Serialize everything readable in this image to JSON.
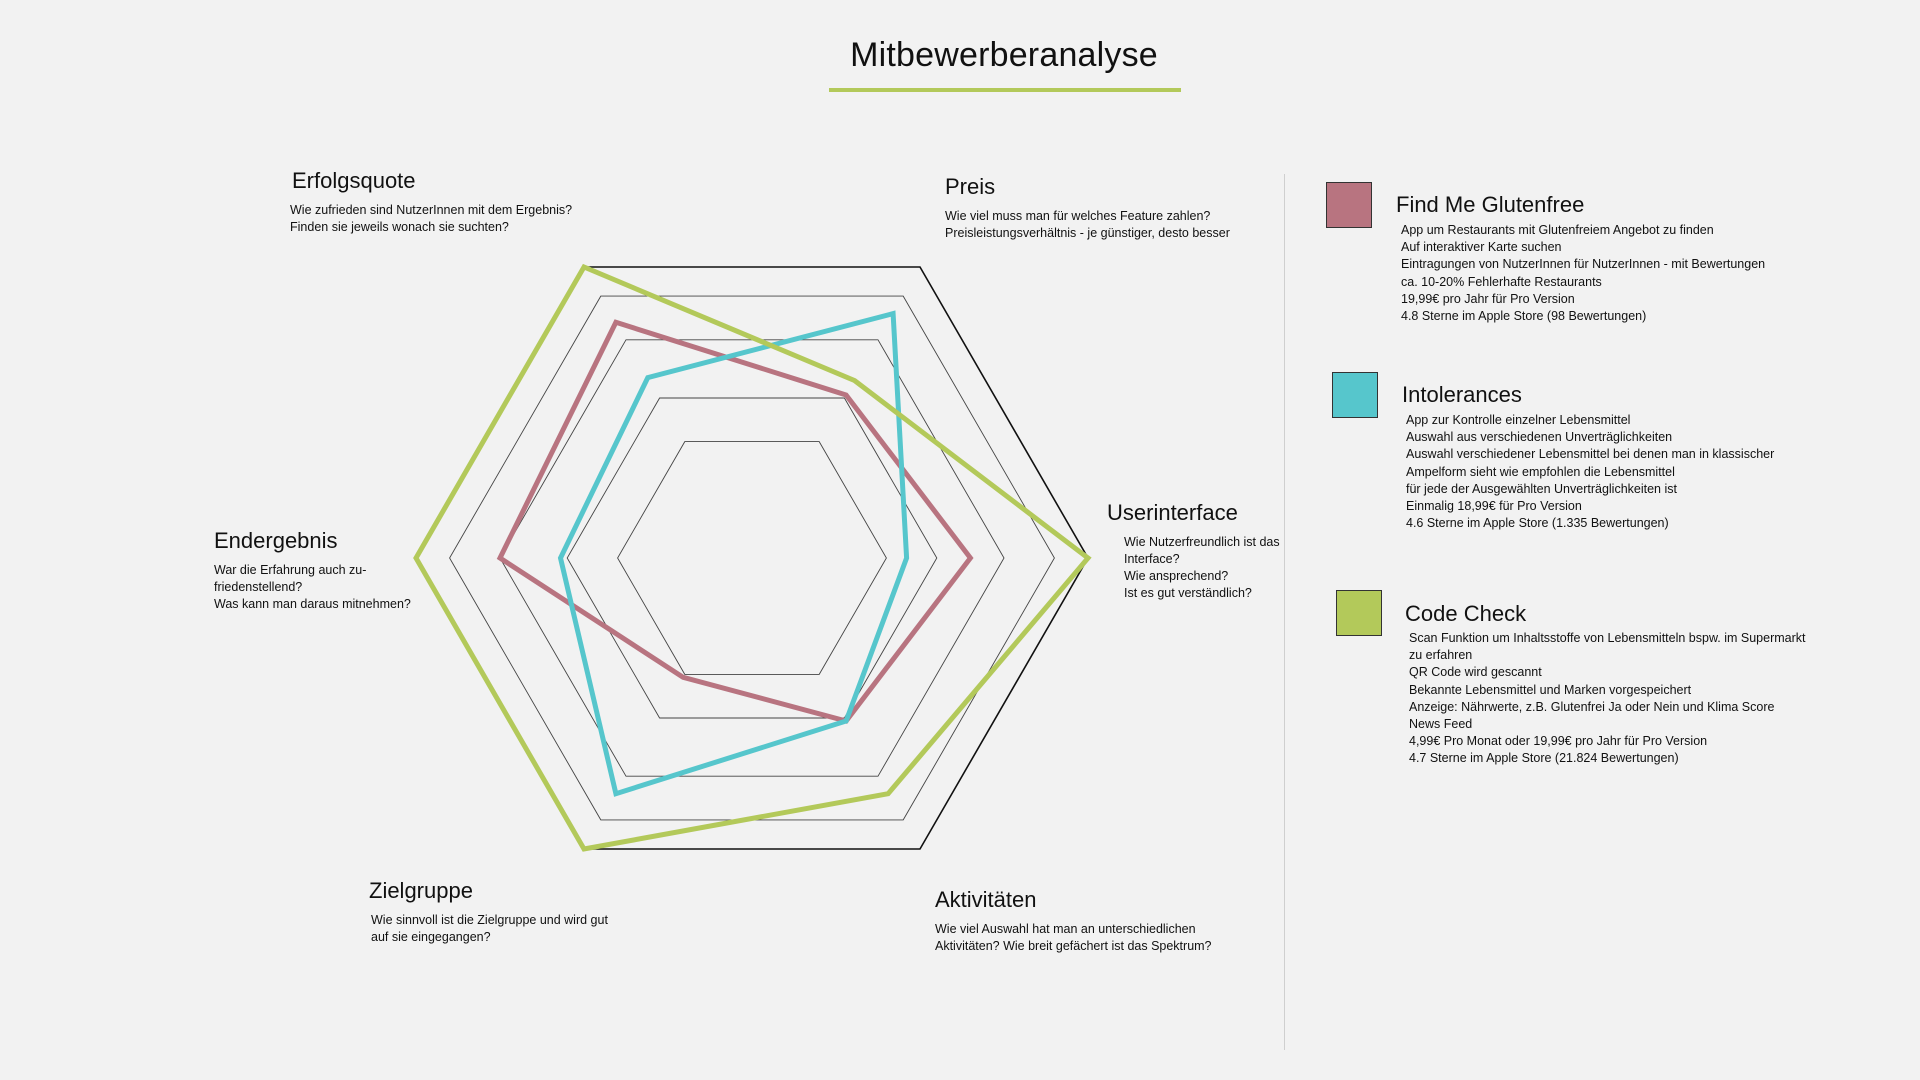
{
  "page": {
    "title": "Mitbewerberanalyse"
  },
  "colors": {
    "accent": "#b3c95a",
    "grid": "#444444",
    "outer": "#111111",
    "divider": "#cfcfcf"
  },
  "chart_data": {
    "type": "radar",
    "axes": [
      {
        "name": "Preis",
        "description": "Wie viel muss man für welches Feature zahlen?\nPreisleistungsverhältnis - je günstiger, desto besser"
      },
      {
        "name": "Userinterface",
        "description": "Wie Nutzerfreundlich ist das\nInterface?\n    Wie ansprechend?\nIst es gut verständlich?"
      },
      {
        "name": "Aktivitäten",
        "description": "Wie viel Auswahl hat man an unterschiedlichen\nAktivitäten? Wie breit gefächert ist das Spektrum?"
      },
      {
        "name": "Zielgruppe",
        "description": "Wie sinnvoll ist die Zielgruppe und wird gut\nauf sie eingegangen?"
      },
      {
        "name": "Endergebnis",
        "description": "War die Erfahrung auch zu-\nfriedenstellend?\nWas kann man daraus mitnehmen?"
      },
      {
        "name": "Erfolgsquote",
        "description": "Wie zufrieden sind NutzerInnen mit dem Ergebnis?\nFinden sie jeweils wonach sie suchten?"
      }
    ],
    "grid_levels": [
      0.4,
      0.55,
      0.75,
      0.9,
      1.0
    ],
    "series": [
      {
        "name": "Find Me Glutenfree",
        "color": "#b87480",
        "values": [
          0.56,
          0.65,
          0.56,
          0.41,
          0.75,
          0.81
        ]
      },
      {
        "name": "Intolerances",
        "color": "#56c6cc",
        "values": [
          0.84,
          0.46,
          0.56,
          0.81,
          0.57,
          0.62
        ]
      },
      {
        "name": "Code Check",
        "color": "#b3c95a",
        "values": [
          0.61,
          1.0,
          0.81,
          1.0,
          1.0,
          1.0
        ]
      }
    ]
  },
  "legend": [
    {
      "name": "Find Me Glutenfree",
      "color": "#b87480",
      "details": [
        "App um Restaurants mit Glutenfreiem Angebot zu finden",
        "Auf interaktiver Karte suchen",
        "Eintragungen von NutzerInnen für NutzerInnen - mit Bewertungen",
        "ca. 10-20% Fehlerhafte Restaurants",
        "19,99€ pro Jahr für Pro Version",
        "4.8 Sterne im Apple Store (98 Bewertungen)"
      ]
    },
    {
      "name": "Intolerances",
      "color": "#56c6cc",
      "details": [
        "App zur Kontrolle einzelner Lebensmittel",
        "Auswahl aus verschiedenen Unverträglichkeiten",
        "Auswahl verschiedener Lebensmittel bei denen man in klassischer",
        "Ampelform sieht wie empfohlen die Lebensmittel",
        "für jede der Ausgewählten Unverträglichkeiten ist",
        "Einmalig 18,99€ für Pro Version",
        "4.6 Sterne im Apple Store (1.335 Bewertungen)"
      ]
    },
    {
      "name": "Code Check",
      "color": "#b3c95a",
      "details": [
        "Scan Funktion um Inhaltsstoffe von Lebensmitteln bspw. im Supermarkt",
        "zu erfahren",
        "QR Code wird gescannt",
        "Bekannte Lebensmittel und Marken vorgespeichert",
        "Anzeige: Nährwerte, z.B. Glutenfrei Ja oder Nein und Klima Score",
        "News Feed",
        "4,99€ Pro Monat oder 19,99€ pro Jahr für Pro Version",
        "4.7 Sterne im Apple Store (21.824 Bewertungen)"
      ]
    }
  ]
}
